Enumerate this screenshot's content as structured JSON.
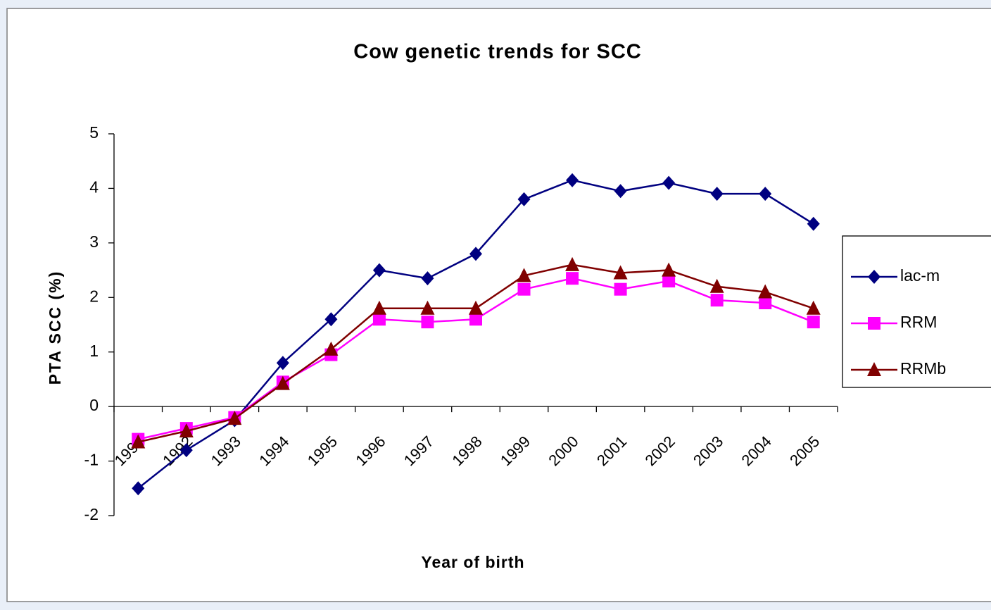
{
  "chart_data": {
    "type": "line",
    "title": "Cow genetic trends for SCC",
    "x_label": "Year of birth",
    "y_label": "PTA SCC (%)",
    "categories": [
      "1991",
      "1992",
      "1993",
      "1994",
      "1995",
      "1996",
      "1997",
      "1998",
      "1999",
      "2000",
      "2001",
      "2002",
      "2003",
      "2004",
      "2005"
    ],
    "series": [
      {
        "name": "lac-m",
        "color": "#000080",
        "marker": "diamond",
        "values": [
          -1.5,
          -0.8,
          -0.25,
          0.8,
          1.6,
          2.5,
          2.35,
          2.8,
          3.8,
          4.15,
          3.95,
          4.1,
          3.9,
          3.9,
          3.35
        ]
      },
      {
        "name": "RRM",
        "color": "#ff00ff",
        "marker": "square",
        "values": [
          -0.6,
          -0.4,
          -0.2,
          0.45,
          0.95,
          1.6,
          1.55,
          1.6,
          2.15,
          2.35,
          2.15,
          2.3,
          1.95,
          1.9,
          1.55
        ]
      },
      {
        "name": "RRMb",
        "color": "#800000",
        "marker": "triangle",
        "values": [
          -0.65,
          -0.45,
          -0.22,
          0.42,
          1.05,
          1.8,
          1.8,
          1.8,
          2.4,
          2.6,
          2.45,
          2.5,
          2.2,
          2.1,
          1.8
        ]
      }
    ],
    "ylim": [
      -2,
      5
    ],
    "yticks": [
      -2,
      -1,
      0,
      1,
      2,
      3,
      4,
      5
    ],
    "grid": false,
    "legend": "right"
  }
}
